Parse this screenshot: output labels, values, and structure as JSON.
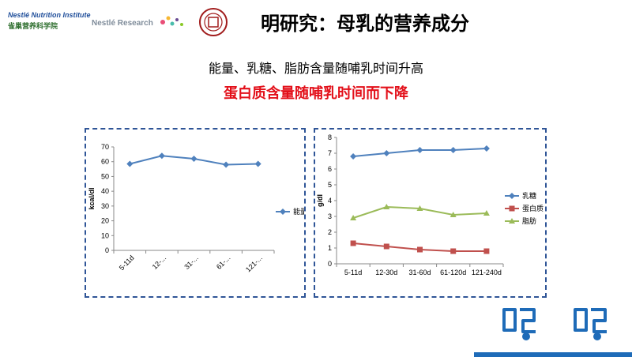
{
  "header": {
    "logo1_text": "Nestlé Nutrition Institute",
    "logo1_sub": "雀巢营养科学院",
    "logo2_text": "Nestlé Research",
    "title": "明研究：母乳的营养成分"
  },
  "subtitle_line1": "能量、乳糖、脂肪含量随哺乳时间升高",
  "subtitle_line2": "蛋白质含量随哺乳时间而下降",
  "colors": {
    "blue": "#4f81bd",
    "red": "#c0504d",
    "green": "#9bbb59",
    "title_red": "#e3101a",
    "box_border": "#2f5597"
  },
  "chart_data": [
    {
      "type": "line",
      "categories": [
        "5-11d",
        "12-...",
        "31-...",
        "61-...",
        "121-..."
      ],
      "series": [
        {
          "name": "能量",
          "values": [
            58.5,
            64,
            62,
            58,
            58.5
          ]
        }
      ],
      "ylabel": "kcal/dl",
      "ylim": [
        0,
        70
      ],
      "yticks": [
        0,
        10,
        20,
        30,
        40,
        50,
        60,
        70
      ],
      "legend_position": "right",
      "grid": false
    },
    {
      "type": "line",
      "categories": [
        "5-11d",
        "12-30d",
        "31-60d",
        "61-120d",
        "121-240d"
      ],
      "series": [
        {
          "name": "乳糖",
          "values": [
            6.8,
            7.0,
            7.2,
            7.2,
            7.3
          ]
        },
        {
          "name": "蛋白质",
          "values": [
            1.3,
            1.1,
            0.9,
            0.8,
            0.8
          ]
        },
        {
          "name": "脂肪",
          "values": [
            2.9,
            3.6,
            3.5,
            3.1,
            3.2
          ]
        }
      ],
      "ylabel": "g/dl",
      "ylim": [
        0,
        8
      ],
      "yticks": [
        0,
        1,
        2,
        3,
        4,
        5,
        6,
        7,
        8
      ],
      "legend_position": "right",
      "grid": false
    }
  ]
}
